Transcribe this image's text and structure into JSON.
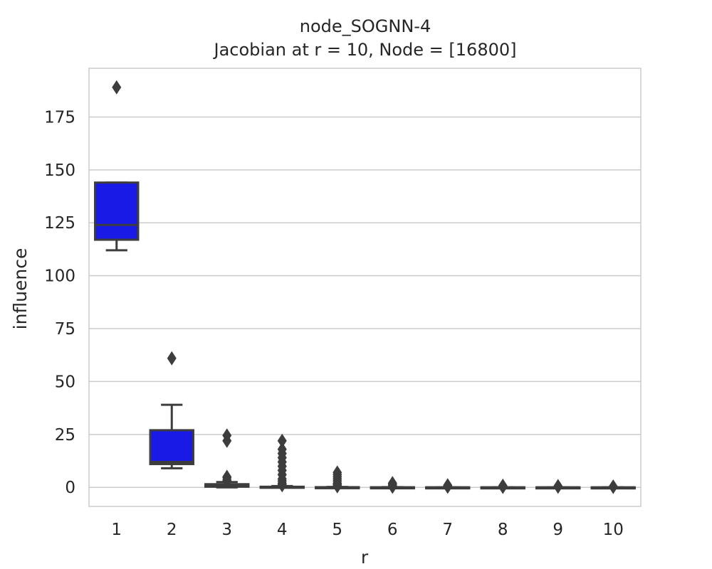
{
  "chart_data": {
    "type": "box",
    "title": "node_SOGNN-4",
    "subtitle": "Jacobian at r = 10, Node = [16800]",
    "xlabel": "r",
    "ylabel": "influence",
    "categories": [
      "1",
      "2",
      "3",
      "4",
      "5",
      "6",
      "7",
      "8",
      "9",
      "10"
    ],
    "ylim": [
      -9,
      198
    ],
    "yticks": [
      0,
      25,
      50,
      75,
      100,
      125,
      150,
      175
    ],
    "ytick_labels": [
      "0",
      "25",
      "50",
      "75",
      "100",
      "125",
      "150",
      "175"
    ],
    "grid": true,
    "colors": {
      "box_fill": "#1a1ae6",
      "line": "#3d3d3d",
      "grid": "#cccccc",
      "spine": "#cccccc"
    },
    "boxes": [
      {
        "category": "1",
        "q1": 117,
        "median": 124,
        "q3": 144,
        "whislo": 112,
        "whishi": 144,
        "outliers": [
          189
        ]
      },
      {
        "category": "2",
        "q1": 11,
        "median": 12,
        "q3": 27,
        "whislo": 9,
        "whishi": 39,
        "outliers": [
          61
        ]
      },
      {
        "category": "3",
        "q1": 0.3,
        "median": 0.7,
        "q3": 1.5,
        "whislo": 0,
        "whishi": 2.5,
        "outliers": [
          22,
          24.5,
          5,
          4.5,
          3.5,
          3
        ]
      },
      {
        "category": "4",
        "q1": 0,
        "median": 0.1,
        "q3": 0.3,
        "whislo": 0,
        "whishi": 0.6,
        "outliers": [
          22,
          18,
          16,
          14,
          12,
          10,
          8,
          6,
          4,
          3,
          2,
          1.5,
          1
        ]
      },
      {
        "category": "5",
        "q1": 0,
        "median": 0,
        "q3": 0.1,
        "whislo": 0,
        "whishi": 0.2,
        "outliers": [
          7,
          6,
          5,
          4,
          3,
          2,
          1.5,
          1,
          0.5
        ]
      },
      {
        "category": "6",
        "q1": 0,
        "median": 0,
        "q3": 0.05,
        "whislo": 0,
        "whishi": 0.1,
        "outliers": [
          2,
          1.5,
          1,
          0.5,
          0.3
        ]
      },
      {
        "category": "7",
        "q1": 0,
        "median": 0,
        "q3": 0.03,
        "whislo": 0,
        "whishi": 0.05,
        "outliers": [
          1,
          0.6,
          0.3
        ]
      },
      {
        "category": "8",
        "q1": 0,
        "median": 0,
        "q3": 0.02,
        "whislo": 0,
        "whishi": 0.04,
        "outliers": [
          0.8,
          0.5,
          0.2
        ]
      },
      {
        "category": "9",
        "q1": 0,
        "median": 0,
        "q3": 0.02,
        "whislo": 0,
        "whishi": 0.03,
        "outliers": [
          0.6,
          0.3
        ]
      },
      {
        "category": "10",
        "q1": 0,
        "median": 0,
        "q3": 0.01,
        "whislo": 0,
        "whishi": 0.02,
        "outliers": [
          0.4,
          0.2
        ]
      }
    ]
  }
}
